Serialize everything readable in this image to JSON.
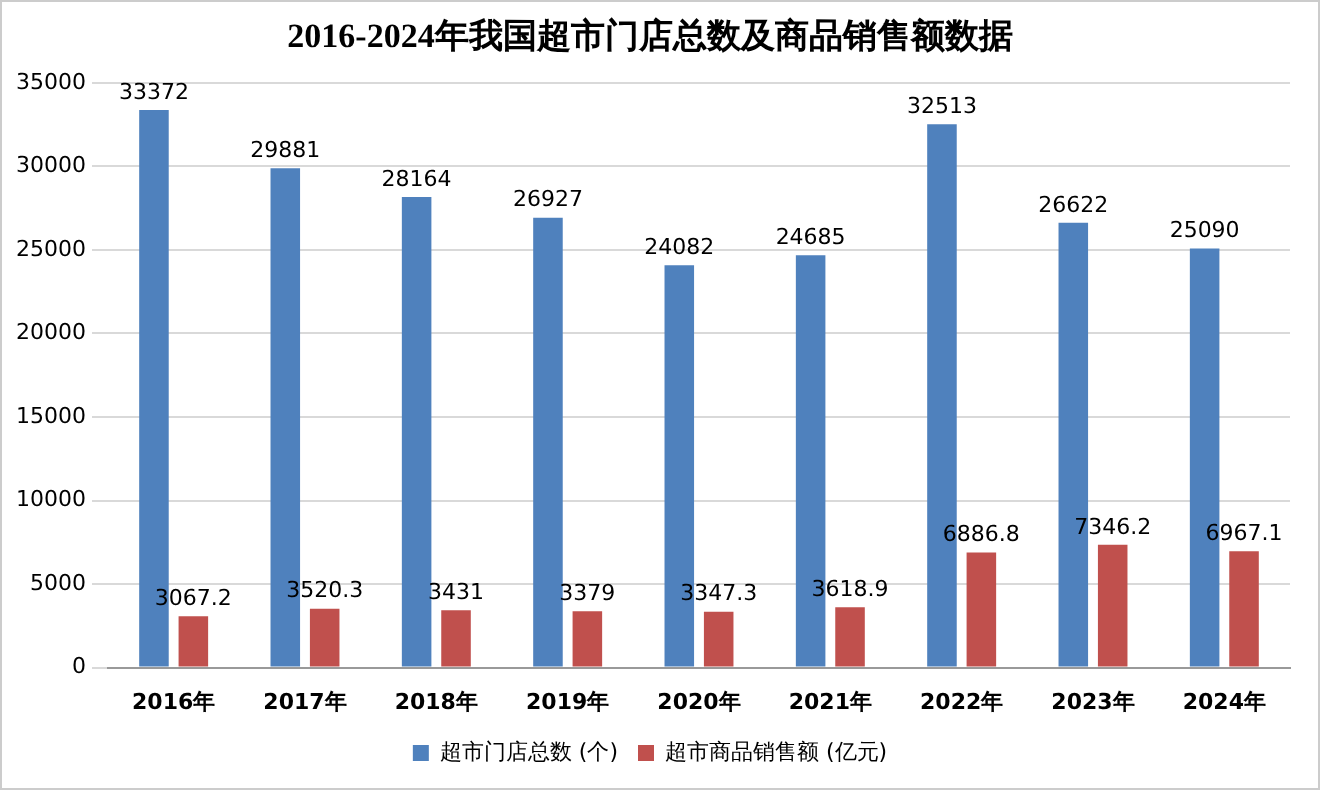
{
  "chart_data": {
    "type": "bar",
    "title": "2016-2024年我国超市门店总数及商品销售额数据",
    "categories": [
      "2016年",
      "2017年",
      "2018年",
      "2019年",
      "2020年",
      "2021年",
      "2022年",
      "2023年",
      "2024年"
    ],
    "series": [
      {
        "name": "超市门店总数 (个)",
        "color": "#4f81bd",
        "values": [
          33372,
          29881,
          28164,
          26927,
          24082,
          24685,
          32513,
          26622,
          25090
        ]
      },
      {
        "name": "超市商品销售额 (亿元)",
        "color": "#c0504d",
        "values": [
          3067.2,
          3520.3,
          3431,
          3379,
          3347.3,
          3618.9,
          6886.8,
          7346.2,
          6967.1
        ]
      }
    ],
    "ylim": [
      0,
      35000
    ],
    "yticks": [
      0,
      5000,
      10000,
      15000,
      20000,
      25000,
      30000,
      35000
    ],
    "grid": "y",
    "legend": "bottom",
    "data_labels": true
  }
}
